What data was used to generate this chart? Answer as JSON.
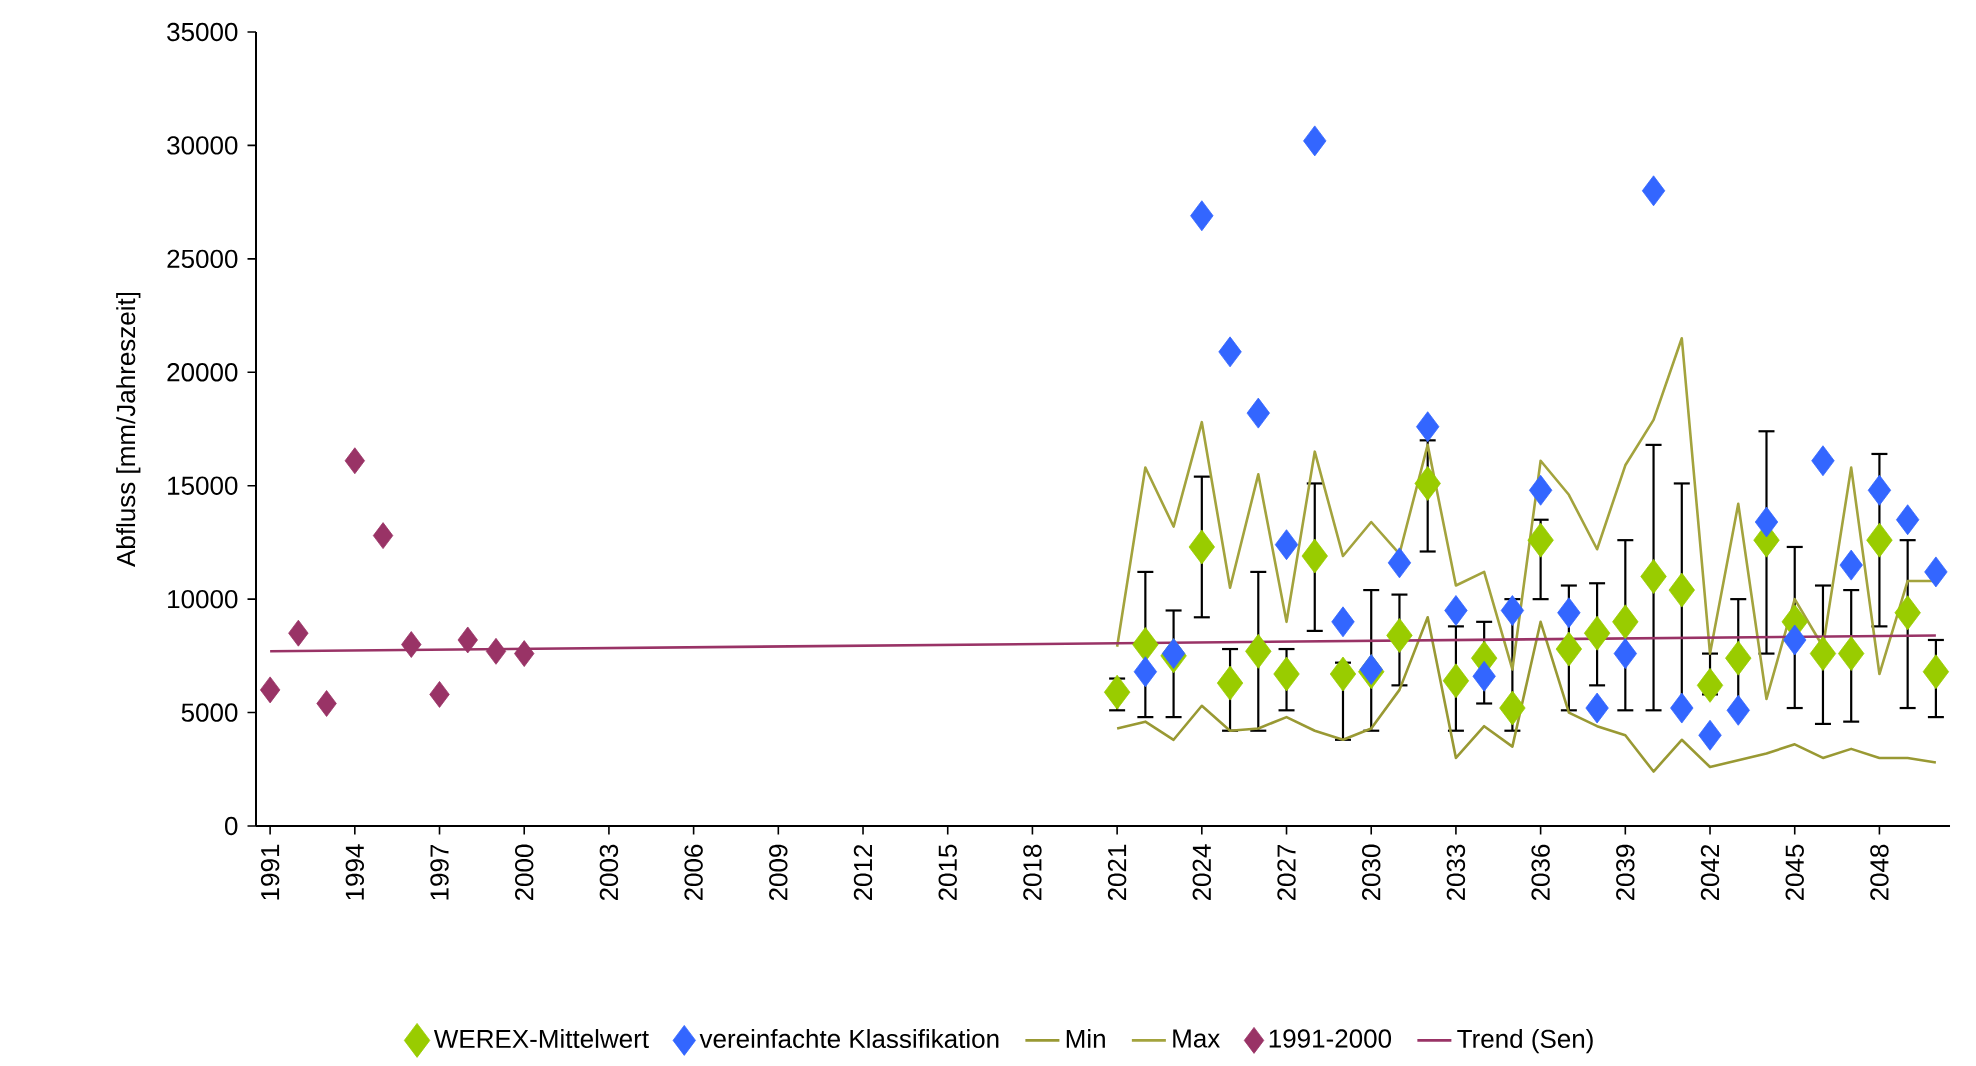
{
  "chart_data": {
    "type": "scatter",
    "ylabel": "Abfluss [mm/Jahreszeit]",
    "xlim": [
      1990.5,
      2050.5
    ],
    "xticks": [
      1991,
      1994,
      1997,
      2000,
      2003,
      2006,
      2009,
      2012,
      2015,
      2018,
      2021,
      2024,
      2027,
      2030,
      2033,
      2036,
      2039,
      2042,
      2045,
      2048
    ],
    "ylim": [
      0,
      35000
    ],
    "yticks": [
      0,
      5000,
      10000,
      15000,
      20000,
      25000,
      30000,
      35000
    ],
    "legend": "bottom",
    "series": [
      {
        "name": "WEREX-Mittelwert",
        "marker": "diamond",
        "color": "#99cc00",
        "x": [
          2021,
          2022,
          2023,
          2024,
          2025,
          2026,
          2027,
          2028,
          2029,
          2030,
          2031,
          2032,
          2033,
          2034,
          2035,
          2036,
          2037,
          2038,
          2039,
          2040,
          2041,
          2042,
          2043,
          2044,
          2045,
          2046,
          2047,
          2048,
          2049,
          2050
        ],
        "values": [
          5900,
          8000,
          7500,
          12300,
          6300,
          7700,
          6700,
          11900,
          6700,
          6800,
          8400,
          15100,
          6400,
          7400,
          5200,
          12600,
          7800,
          8500,
          9000,
          11000,
          10400,
          6200,
          7400,
          12600,
          9000,
          7600,
          7600,
          12600,
          9400,
          6800
        ],
        "errors": [
          [
            5100,
            6500
          ],
          [
            4800,
            11200
          ],
          [
            4800,
            9500
          ],
          [
            9200,
            15400
          ],
          [
            4200,
            7800
          ],
          [
            4200,
            11200
          ],
          [
            5100,
            7800
          ],
          [
            8600,
            15100
          ],
          [
            3800,
            7200
          ],
          [
            4200,
            10400
          ],
          [
            6200,
            10200
          ],
          [
            12100,
            17000
          ],
          [
            4200,
            8800
          ],
          [
            5400,
            9000
          ],
          [
            4200,
            10000
          ],
          [
            10000,
            13500
          ],
          [
            5100,
            10600
          ],
          [
            6200,
            10700
          ],
          [
            5100,
            12600
          ],
          [
            5100,
            16800
          ],
          [
            5200,
            15100
          ],
          [
            5800,
            7600
          ],
          [
            5200,
            10000
          ],
          [
            7600,
            17400
          ],
          [
            5200,
            12300
          ],
          [
            4500,
            10600
          ],
          [
            4600,
            10400
          ],
          [
            8800,
            16400
          ],
          [
            5200,
            12600
          ],
          [
            4800,
            8200
          ]
        ]
      },
      {
        "name": "vereinfachte Klassifikation",
        "marker": "diamond",
        "color": "#3366ff",
        "x": [
          2022,
          2023,
          2024,
          2025,
          2026,
          2027,
          2028,
          2029,
          2030,
          2031,
          2032,
          2033,
          2034,
          2035,
          2036,
          2037,
          2038,
          2039,
          2040,
          2041,
          2042,
          2043,
          2044,
          2045,
          2046,
          2047,
          2048,
          2049,
          2050
        ],
        "values": [
          6800,
          7600,
          26900,
          20900,
          18200,
          12400,
          30200,
          9000,
          6900,
          11600,
          17600,
          9500,
          6600,
          9500,
          14800,
          9400,
          5200,
          7600,
          28000,
          5200,
          4000,
          5100,
          13400,
          8200,
          16100,
          11500,
          14800,
          13500,
          11200
        ]
      },
      {
        "name": "Min",
        "type": "line",
        "marker": "none",
        "color": "#999933",
        "x": [
          2021,
          2022,
          2023,
          2024,
          2025,
          2026,
          2027,
          2028,
          2029,
          2030,
          2031,
          2032,
          2033,
          2034,
          2035,
          2036,
          2037,
          2038,
          2039,
          2040,
          2041,
          2042,
          2043,
          2044,
          2045,
          2046,
          2047,
          2048,
          2049,
          2050
        ],
        "values": [
          4300,
          4600,
          3800,
          5300,
          4200,
          4300,
          4800,
          4200,
          3800,
          4300,
          6000,
          9200,
          3000,
          4400,
          3500,
          9000,
          5000,
          4400,
          4000,
          2400,
          3800,
          2600,
          2900,
          3200,
          3600,
          3000,
          3400,
          3000,
          3000,
          2800
        ]
      },
      {
        "name": "Max",
        "type": "line",
        "marker": "none",
        "color": "#a3a33d",
        "x": [
          2021,
          2022,
          2023,
          2024,
          2025,
          2026,
          2027,
          2028,
          2029,
          2030,
          2031,
          2032,
          2033,
          2034,
          2035,
          2036,
          2037,
          2038,
          2039,
          2040,
          2041,
          2042,
          2043,
          2044,
          2045,
          2046,
          2047,
          2048,
          2049,
          2050
        ],
        "values": [
          7900,
          15800,
          13200,
          17800,
          10500,
          15500,
          9000,
          16500,
          11900,
          13400,
          12000,
          16800,
          10600,
          11200,
          6900,
          16100,
          14600,
          12200,
          15900,
          17900,
          21500,
          7600,
          14200,
          5600,
          10000,
          7900,
          15800,
          6700,
          10800,
          10800
        ]
      },
      {
        "name": "1991-2000",
        "marker": "diamond",
        "color": "#993366",
        "x": [
          1991,
          1992,
          1993,
          1994,
          1995,
          1996,
          1997,
          1998,
          1999,
          2000
        ],
        "values": [
          6000,
          8500,
          5400,
          16100,
          12800,
          8000,
          5800,
          8200,
          7700,
          7600
        ]
      },
      {
        "name": "Trend (Sen)",
        "type": "line",
        "marker": "none",
        "color": "#993366",
        "x": [
          1991,
          2050
        ],
        "values": [
          7700,
          8400
        ]
      }
    ]
  }
}
